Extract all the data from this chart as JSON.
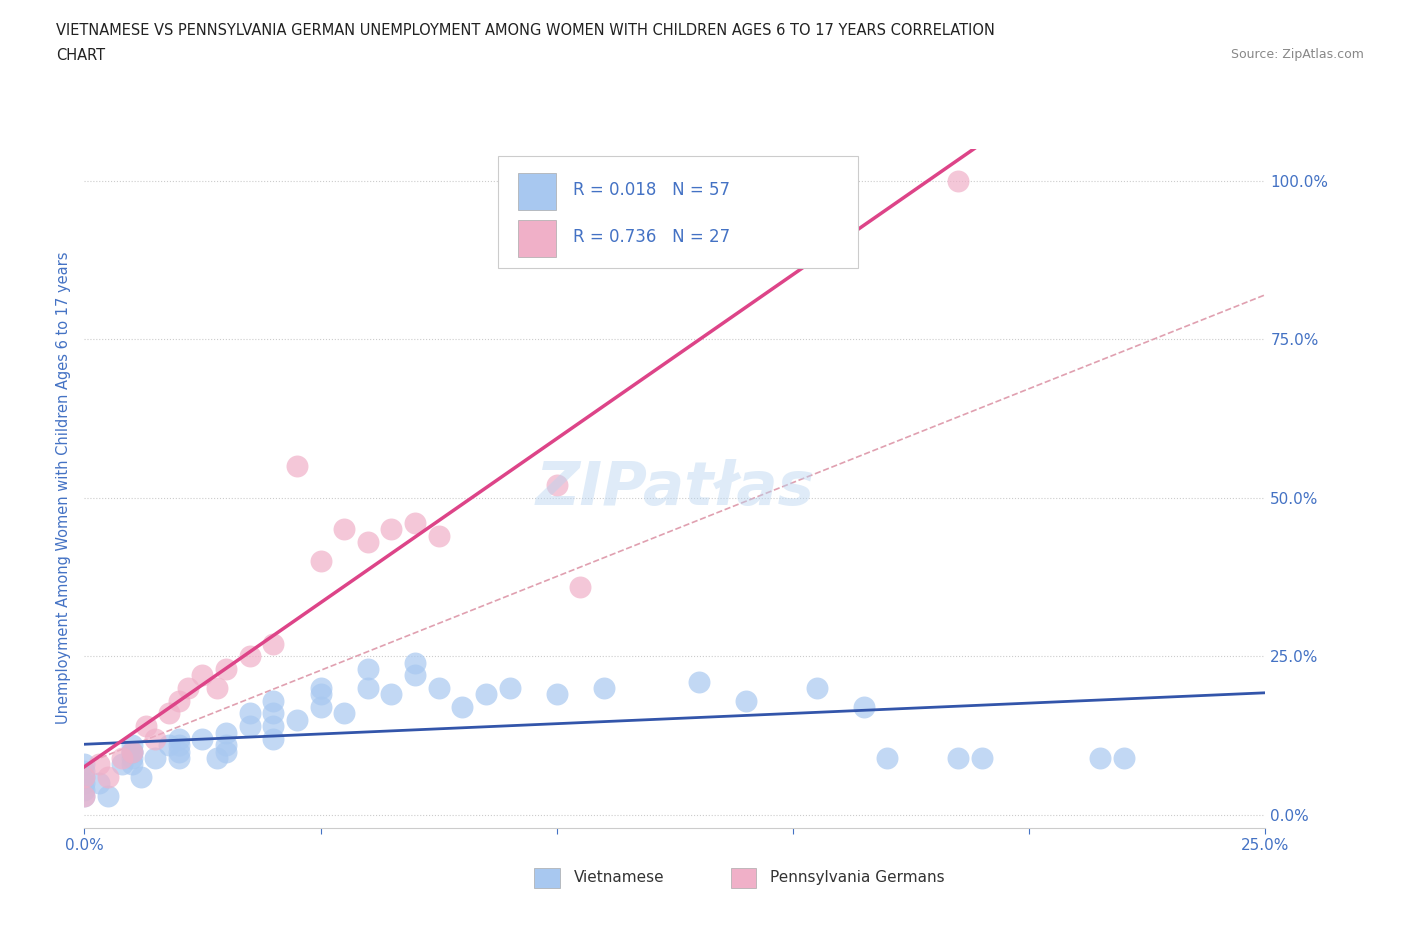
{
  "title_line1": "VIETNAMESE VS PENNSYLVANIA GERMAN UNEMPLOYMENT AMONG WOMEN WITH CHILDREN AGES 6 TO 17 YEARS CORRELATION",
  "title_line2": "CHART",
  "source_text": "Source: ZipAtlas.com",
  "ylabel": "Unemployment Among Women with Children Ages 6 to 17 years",
  "xlim": [
    0,
    0.25
  ],
  "ylim": [
    -0.02,
    1.05
  ],
  "xticks": [
    0.0,
    0.05,
    0.1,
    0.15,
    0.2,
    0.25
  ],
  "yticks": [
    0.0,
    0.25,
    0.5,
    0.75,
    1.0
  ],
  "xticklabels": [
    "0.0%",
    "",
    "",
    "",
    "",
    "25.0%"
  ],
  "yticklabels_right": [
    "0.0%",
    "25.0%",
    "50.0%",
    "75.0%",
    "100.0%"
  ],
  "color_vietnamese": "#a8c8f0",
  "color_penn_german": "#f0b0c8",
  "color_line_vietnamese": "#3355aa",
  "color_line_penn_german": "#dd4488",
  "color_ref_line": "#e0a0b0",
  "color_axis_labels": "#4472c4",
  "color_title": "#222222",
  "legend_r_vietnamese": "R = 0.018",
  "legend_n_vietnamese": "N = 57",
  "legend_r_penn": "R = 0.736",
  "legend_n_penn": "N = 27",
  "vietnamese_x": [
    0.0,
    0.0,
    0.0,
    0.0,
    0.0,
    0.0,
    0.003,
    0.005,
    0.008,
    0.01,
    0.01,
    0.01,
    0.01,
    0.01,
    0.012,
    0.015,
    0.018,
    0.02,
    0.02,
    0.02,
    0.02,
    0.025,
    0.028,
    0.03,
    0.03,
    0.03,
    0.035,
    0.035,
    0.04,
    0.04,
    0.04,
    0.04,
    0.045,
    0.05,
    0.05,
    0.05,
    0.055,
    0.06,
    0.06,
    0.065,
    0.07,
    0.07,
    0.075,
    0.08,
    0.085,
    0.09,
    0.1,
    0.11,
    0.13,
    0.14,
    0.155,
    0.165,
    0.17,
    0.185,
    0.19,
    0.215,
    0.22
  ],
  "vietnamese_y": [
    0.03,
    0.04,
    0.05,
    0.06,
    0.07,
    0.08,
    0.05,
    0.03,
    0.08,
    0.1,
    0.11,
    0.08,
    0.09,
    0.1,
    0.06,
    0.09,
    0.11,
    0.12,
    0.09,
    0.1,
    0.11,
    0.12,
    0.09,
    0.13,
    0.1,
    0.11,
    0.14,
    0.16,
    0.12,
    0.14,
    0.16,
    0.18,
    0.15,
    0.17,
    0.19,
    0.2,
    0.16,
    0.2,
    0.23,
    0.19,
    0.22,
    0.24,
    0.2,
    0.17,
    0.19,
    0.2,
    0.19,
    0.2,
    0.21,
    0.18,
    0.2,
    0.17,
    0.09,
    0.09,
    0.09,
    0.09,
    0.09
  ],
  "penn_german_x": [
    0.0,
    0.0,
    0.003,
    0.005,
    0.008,
    0.01,
    0.013,
    0.015,
    0.018,
    0.02,
    0.022,
    0.025,
    0.028,
    0.03,
    0.035,
    0.04,
    0.045,
    0.05,
    0.055,
    0.06,
    0.065,
    0.07,
    0.075,
    0.1,
    0.105,
    0.155,
    0.185
  ],
  "penn_german_y": [
    0.03,
    0.06,
    0.08,
    0.06,
    0.09,
    0.1,
    0.14,
    0.12,
    0.16,
    0.18,
    0.2,
    0.22,
    0.2,
    0.23,
    0.25,
    0.27,
    0.55,
    0.4,
    0.45,
    0.43,
    0.45,
    0.46,
    0.44,
    0.52,
    0.36,
    1.0,
    1.0
  ],
  "ref_line_x": [
    0.0,
    0.25
  ],
  "ref_line_y": [
    0.08,
    0.82
  ],
  "background_color": "#ffffff",
  "grid_color": "#cccccc",
  "grid_style": "dotted"
}
